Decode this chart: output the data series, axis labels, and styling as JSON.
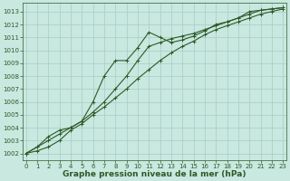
{
  "xlabel": "Graphe pression niveau de la mer (hPa)",
  "background_color": "#c8e8e0",
  "grid_color": "#a8ccc4",
  "line_color": "#2d5a27",
  "ylim": [
    1001.5,
    1013.7
  ],
  "xlim": [
    -0.3,
    23.3
  ],
  "yticks": [
    1002,
    1003,
    1004,
    1005,
    1006,
    1007,
    1008,
    1009,
    1010,
    1011,
    1012,
    1013
  ],
  "xticks": [
    0,
    1,
    2,
    3,
    4,
    5,
    6,
    7,
    8,
    9,
    10,
    11,
    12,
    13,
    14,
    15,
    16,
    17,
    18,
    19,
    20,
    21,
    22,
    23
  ],
  "line1_x": [
    0,
    1,
    2,
    3,
    4,
    5,
    6,
    7,
    8,
    9,
    10,
    11,
    12,
    13,
    14,
    15,
    16,
    17,
    18,
    19,
    20,
    21,
    22,
    23
  ],
  "line1_y": [
    1002.0,
    1002.2,
    1002.5,
    1003.0,
    1003.8,
    1004.3,
    1005.0,
    1005.6,
    1006.3,
    1007.0,
    1007.8,
    1008.5,
    1009.2,
    1009.8,
    1010.3,
    1010.7,
    1011.2,
    1011.6,
    1011.9,
    1012.2,
    1012.5,
    1012.8,
    1013.0,
    1013.2
  ],
  "line2_x": [
    0,
    1,
    2,
    3,
    4,
    5,
    6,
    7,
    8,
    9,
    10,
    11,
    12,
    13,
    14,
    15,
    16,
    17,
    18,
    19,
    20,
    21,
    22,
    23
  ],
  "line2_y": [
    1002.0,
    1002.5,
    1003.0,
    1003.5,
    1004.0,
    1004.5,
    1005.2,
    1006.0,
    1007.0,
    1008.0,
    1009.2,
    1010.3,
    1010.6,
    1010.9,
    1011.1,
    1011.3,
    1011.6,
    1011.9,
    1012.2,
    1012.5,
    1012.8,
    1013.1,
    1013.2,
    1013.3
  ],
  "line3_x": [
    0,
    1,
    2,
    3,
    4,
    5,
    6,
    7,
    8,
    9,
    10,
    11,
    12,
    13,
    14,
    15,
    16,
    17,
    18,
    19,
    20,
    21,
    22,
    23
  ],
  "line3_y": [
    1002.0,
    1002.5,
    1003.3,
    1003.8,
    1004.0,
    1004.5,
    1006.0,
    1008.0,
    1009.2,
    1009.2,
    1010.2,
    1011.4,
    1011.0,
    1010.6,
    1010.8,
    1011.1,
    1011.5,
    1012.0,
    1012.2,
    1012.5,
    1013.0,
    1013.1,
    1013.2,
    1013.3
  ],
  "marker": "+",
  "marker_size": 3,
  "line_width": 0.8,
  "tick_fontsize": 5,
  "label_fontsize": 6.5,
  "label_fontweight": "bold"
}
